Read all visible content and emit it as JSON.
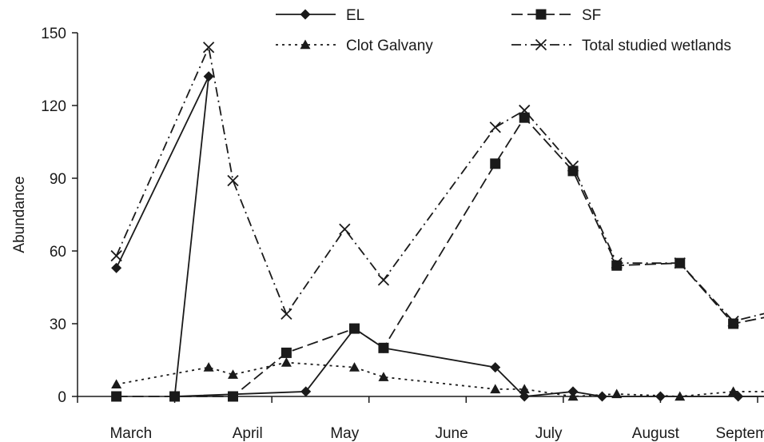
{
  "chart_data": {
    "type": "line",
    "title": "",
    "xlabel": "",
    "ylabel": "Abundance",
    "ylim": [
      0,
      150
    ],
    "yticks": [
      0,
      30,
      60,
      90,
      120,
      150
    ],
    "xlim": [
      1,
      12
    ],
    "month_labels": [
      {
        "label": "March",
        "pos": 1.55
      },
      {
        "label": "April",
        "pos": 2.75
      },
      {
        "label": "May",
        "pos": 3.75
      },
      {
        "label": "June",
        "pos": 4.85
      },
      {
        "label": "July",
        "pos": 5.85
      },
      {
        "label": "August",
        "pos": 6.95
      },
      {
        "label": "September",
        "pos": 7.95
      }
    ],
    "grid": false,
    "legend_position": "top",
    "series": [
      {
        "name": "EL",
        "marker": "diamond",
        "dash": "solid",
        "color": "#1a1a1a",
        "x": [
          1.4,
          2.35,
          2.0,
          3.35,
          3.85,
          4.15,
          5.3,
          5.6,
          6.1,
          6.4,
          7.0,
          7.8,
          8.3
        ],
        "y": [
          53,
          132,
          0,
          2,
          28,
          20,
          12,
          0,
          2,
          0,
          0,
          0,
          0
        ]
      },
      {
        "name": "SF",
        "marker": "square",
        "dash": "long-dash",
        "color": "#1a1a1a",
        "x": [
          1.4,
          2.0,
          2.6,
          3.15,
          3.85,
          4.15,
          5.3,
          5.6,
          6.1,
          6.55,
          7.2,
          7.75,
          8.25
        ],
        "y": [
          0,
          0,
          0,
          18,
          28,
          20,
          96,
          115,
          93,
          54,
          55,
          30,
          34
        ]
      },
      {
        "name": "Clot Galvany",
        "marker": "triangle",
        "dash": "dotted",
        "color": "#1a1a1a",
        "x": [
          1.4,
          2.35,
          2.6,
          3.15,
          3.85,
          4.15,
          5.3,
          5.6,
          6.1,
          6.55,
          7.2,
          7.75,
          8.25
        ],
        "y": [
          5,
          12,
          9,
          14,
          12,
          8,
          3,
          3,
          0,
          1,
          0,
          2,
          2
        ]
      },
      {
        "name": "Total studied wetlands",
        "marker": "x",
        "dash": "dash-dot",
        "color": "#1a1a1a",
        "x": [
          1.4,
          2.35,
          2.6,
          3.15,
          3.75,
          4.15,
          5.3,
          5.6,
          6.1,
          6.55,
          7.2,
          7.75,
          8.25
        ],
        "y": [
          58,
          144,
          89,
          34,
          69,
          48,
          111,
          118,
          95,
          55,
          55,
          31,
          36
        ]
      }
    ]
  }
}
